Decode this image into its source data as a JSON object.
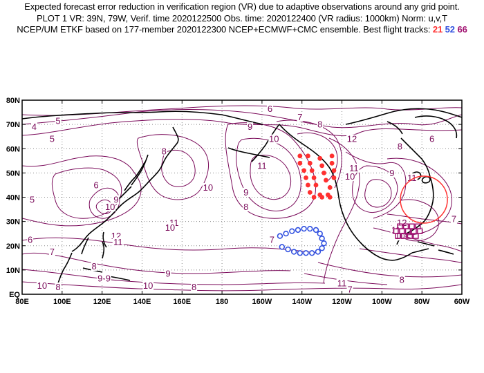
{
  "title": {
    "line1": "Expected forecast error reduction in verification region (VR) due to adaptive observations around any grid point.",
    "line2": "PLOT 1 VR: 39N, 79W, Verif. time 2020122500 Obs. time: 2020122400 (VR radius: 1000km) Norm: u,v,T",
    "line3_prefix": "NCEP/UM ETKF based on 177-member 2020122300 NCEP+ECMWF+CMC ensemble. Best flight tracks:",
    "track_21": "21",
    "track_52": "52",
    "track_66": "66"
  },
  "axes": {
    "lon_ticks": [
      "80E",
      "100E",
      "120E",
      "140E",
      "160E",
      "180",
      "160W",
      "140W",
      "120W",
      "100W",
      "80W",
      "60W"
    ],
    "lat_ticks": [
      "EQ",
      "10N",
      "20N",
      "30N",
      "40N",
      "50N",
      "60N",
      "70N",
      "80N"
    ]
  },
  "contour_labels": [
    {
      "text": "6",
      "lon": 204,
      "lat": 75.5
    },
    {
      "text": "7",
      "lon": 219,
      "lat": 72
    },
    {
      "text": "8",
      "lon": 229,
      "lat": 69
    },
    {
      "text": "9",
      "lon": 194,
      "lat": 68
    },
    {
      "text": "10",
      "lon": 206,
      "lat": 63
    },
    {
      "text": "12",
      "lon": 245,
      "lat": 63
    },
    {
      "text": "11",
      "lon": 200,
      "lat": 52
    },
    {
      "text": "11",
      "lon": 246,
      "lat": 51
    },
    {
      "text": "10",
      "lon": 244,
      "lat": 47.5
    },
    {
      "text": "9",
      "lon": 265,
      "lat": 49
    },
    {
      "text": "11",
      "lon": 275,
      "lat": 47
    },
    {
      "text": "8",
      "lon": 269,
      "lat": 60
    },
    {
      "text": "6",
      "lon": 285,
      "lat": 63
    },
    {
      "text": "5",
      "lon": 95,
      "lat": 63
    },
    {
      "text": "5",
      "lon": 98,
      "lat": 70.5
    },
    {
      "text": "4",
      "lon": 86,
      "lat": 68
    },
    {
      "text": "5",
      "lon": 85,
      "lat": 38
    },
    {
      "text": "6",
      "lon": 117,
      "lat": 44
    },
    {
      "text": "8",
      "lon": 151,
      "lat": 58
    },
    {
      "text": "9",
      "lon": 127,
      "lat": 38
    },
    {
      "text": "10",
      "lon": 124,
      "lat": 35
    },
    {
      "text": "10",
      "lon": 173,
      "lat": 43
    },
    {
      "text": "9",
      "lon": 192,
      "lat": 41
    },
    {
      "text": "8",
      "lon": 192,
      "lat": 35
    },
    {
      "text": "11",
      "lon": 156,
      "lat": 28.5
    },
    {
      "text": "10",
      "lon": 154,
      "lat": 26.5
    },
    {
      "text": "12",
      "lon": 127,
      "lat": 23
    },
    {
      "text": "11",
      "lon": 128,
      "lat": 20.5
    },
    {
      "text": "6",
      "lon": 84,
      "lat": 21.5
    },
    {
      "text": "7",
      "lon": 95,
      "lat": 16.5
    },
    {
      "text": "8",
      "lon": 116,
      "lat": 10.5
    },
    {
      "text": "9",
      "lon": 119,
      "lat": 5.5
    },
    {
      "text": "9",
      "lon": 123,
      "lat": 5.5
    },
    {
      "text": "10",
      "lon": 143,
      "lat": 2.5
    },
    {
      "text": "10",
      "lon": 90,
      "lat": 2.5
    },
    {
      "text": "8",
      "lon": 98,
      "lat": 2
    },
    {
      "text": "9",
      "lon": 153,
      "lat": 7.5
    },
    {
      "text": "8",
      "lon": 166,
      "lat": 2
    },
    {
      "text": "7",
      "lon": 205,
      "lat": 21.5
    },
    {
      "text": "12",
      "lon": 270,
      "lat": 28.5
    },
    {
      "text": "11",
      "lon": 267,
      "lat": 25.5
    },
    {
      "text": "10",
      "lon": 269,
      "lat": 23
    },
    {
      "text": "7",
      "lon": 296,
      "lat": 30
    },
    {
      "text": "8",
      "lon": 270,
      "lat": 5
    },
    {
      "text": "11",
      "lon": 240,
      "lat": 3.5
    },
    {
      "text": "7",
      "lon": 244,
      "lat": 1
    }
  ],
  "tracks": {
    "red": {
      "color": "#ff3030",
      "points": [
        [
          219,
          57
        ],
        [
          223,
          57
        ],
        [
          229,
          56
        ],
        [
          235,
          57
        ],
        [
          219,
          54
        ],
        [
          224,
          54
        ],
        [
          230,
          53
        ],
        [
          235,
          54
        ],
        [
          221,
          51
        ],
        [
          225,
          51
        ],
        [
          231,
          50
        ],
        [
          236,
          51
        ],
        [
          222,
          48
        ],
        [
          226,
          48
        ],
        [
          232,
          47
        ],
        [
          236,
          48
        ],
        [
          223,
          45
        ],
        [
          227,
          45
        ],
        [
          234,
          44
        ],
        [
          224,
          42
        ],
        [
          229,
          41
        ],
        [
          233,
          41
        ],
        [
          226,
          40
        ],
        [
          230,
          40
        ],
        [
          234,
          40
        ]
      ]
    },
    "blue": {
      "color": "#3050e0",
      "points": [
        [
          209,
          24
        ],
        [
          212,
          25
        ],
        [
          215,
          26
        ],
        [
          218,
          26.5
        ],
        [
          221,
          27
        ],
        [
          224,
          27
        ],
        [
          227,
          26.5
        ],
        [
          229,
          25
        ],
        [
          230,
          23
        ],
        [
          231,
          21
        ],
        [
          230,
          19
        ],
        [
          228,
          17.5
        ],
        [
          225,
          17
        ],
        [
          222,
          17
        ],
        [
          219,
          17
        ],
        [
          216,
          17.5
        ],
        [
          213,
          18.5
        ],
        [
          210,
          19.5
        ]
      ]
    },
    "purple": {
      "color": "#a01070",
      "points": [
        [
          269,
          28
        ],
        [
          272,
          28
        ],
        [
          275,
          28
        ],
        [
          278,
          28
        ],
        [
          267,
          26
        ],
        [
          270,
          26
        ],
        [
          273,
          26
        ],
        [
          276,
          26
        ],
        [
          279,
          26
        ],
        [
          268,
          24
        ],
        [
          271,
          24
        ],
        [
          274,
          24
        ],
        [
          277,
          24
        ]
      ]
    }
  },
  "verification_circle": {
    "lon": 281,
    "lat": 39,
    "color": "#ff3030"
  }
}
